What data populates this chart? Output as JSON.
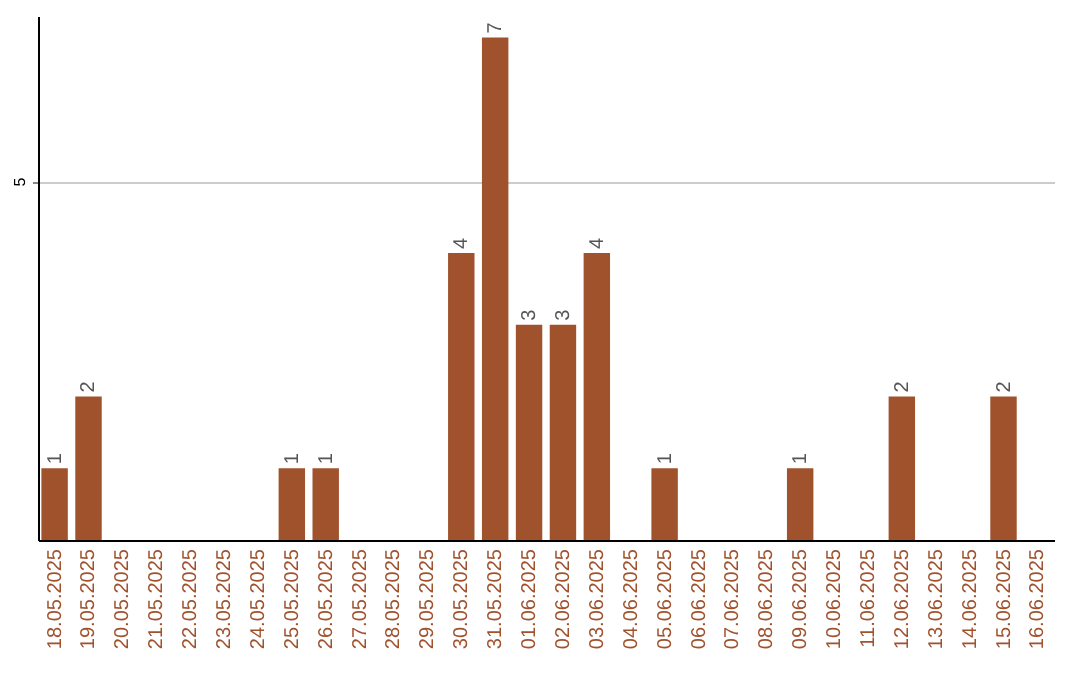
{
  "chart_data": {
    "type": "bar",
    "categories": [
      "18.05.2025",
      "19.05.2025",
      "20.05.2025",
      "21.05.2025",
      "22.05.2025",
      "23.05.2025",
      "24.05.2025",
      "25.05.2025",
      "26.05.2025",
      "27.05.2025",
      "28.05.2025",
      "29.05.2025",
      "30.05.2025",
      "31.05.2025",
      "01.06.2025",
      "02.06.2025",
      "03.06.2025",
      "04.06.2025",
      "05.06.2025",
      "06.06.2025",
      "07.06.2025",
      "08.06.2025",
      "09.06.2025",
      "10.06.2025",
      "11.06.2025",
      "12.06.2025",
      "13.06.2025",
      "14.06.2025",
      "15.06.2025",
      "16.06.2025"
    ],
    "values": [
      1,
      2,
      0,
      0,
      0,
      0,
      0,
      1,
      1,
      0,
      0,
      0,
      4,
      7,
      3,
      3,
      4,
      0,
      1,
      0,
      0,
      0,
      1,
      0,
      0,
      2,
      0,
      0,
      2,
      0
    ],
    "value_labels": [
      "1",
      "2",
      null,
      null,
      null,
      null,
      null,
      "1",
      "1",
      null,
      null,
      null,
      "4",
      "7",
      "3",
      "3",
      "4",
      null,
      "1",
      null,
      null,
      null,
      "1",
      null,
      null,
      "2",
      null,
      null,
      "2",
      null
    ],
    "color": "#a0522d",
    "ylim": [
      0,
      7.3
    ],
    "yticks": [
      5
    ],
    "grid": "y"
  }
}
